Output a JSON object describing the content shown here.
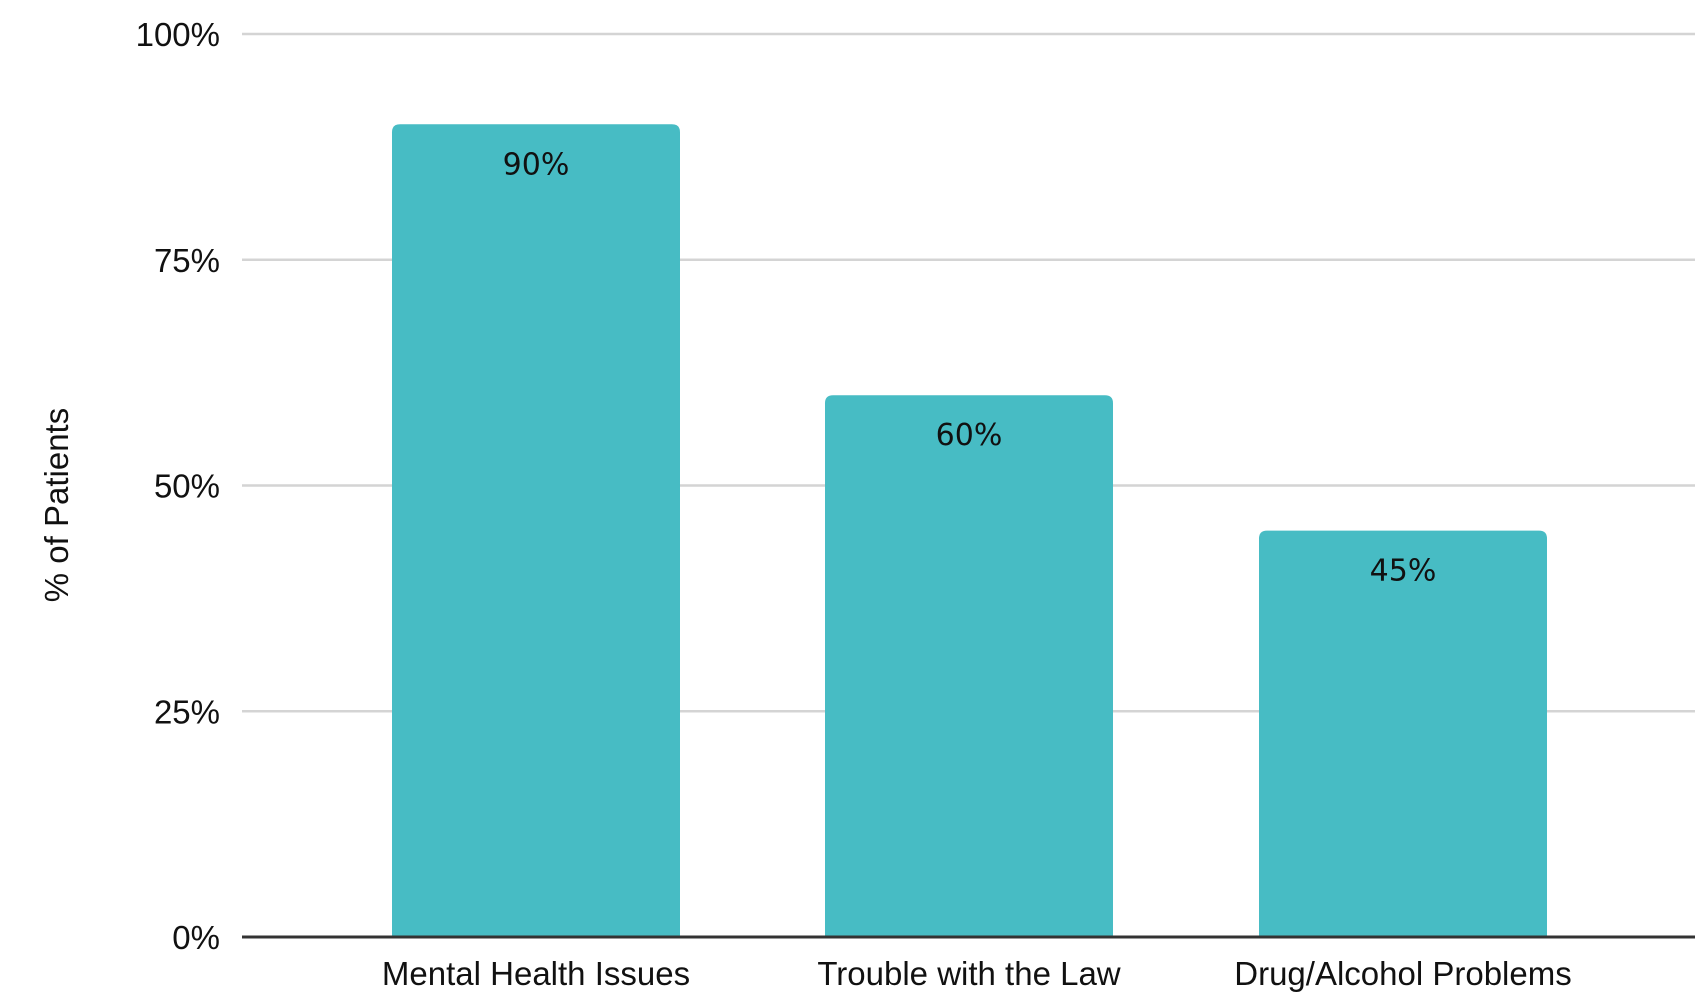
{
  "chart_data": {
    "type": "bar",
    "title": "",
    "xlabel": "",
    "ylabel": "% of Patients",
    "categories": [
      "Mental Health Issues",
      "Trouble with the Law",
      "Drug/Alcohol Problems"
    ],
    "values": [
      90,
      60,
      45
    ],
    "data_labels": [
      "90%",
      "60%",
      "45%"
    ],
    "ylim": [
      0,
      100
    ],
    "yticks": [
      0,
      25,
      50,
      75,
      100
    ],
    "ytick_labels": [
      "0%",
      "25%",
      "50%",
      "75%",
      "100%"
    ],
    "grid": true,
    "legend": "none",
    "colors": {
      "bar": "#47bcc4",
      "grid": "#d4d4d4",
      "baseline": "#333333"
    }
  }
}
